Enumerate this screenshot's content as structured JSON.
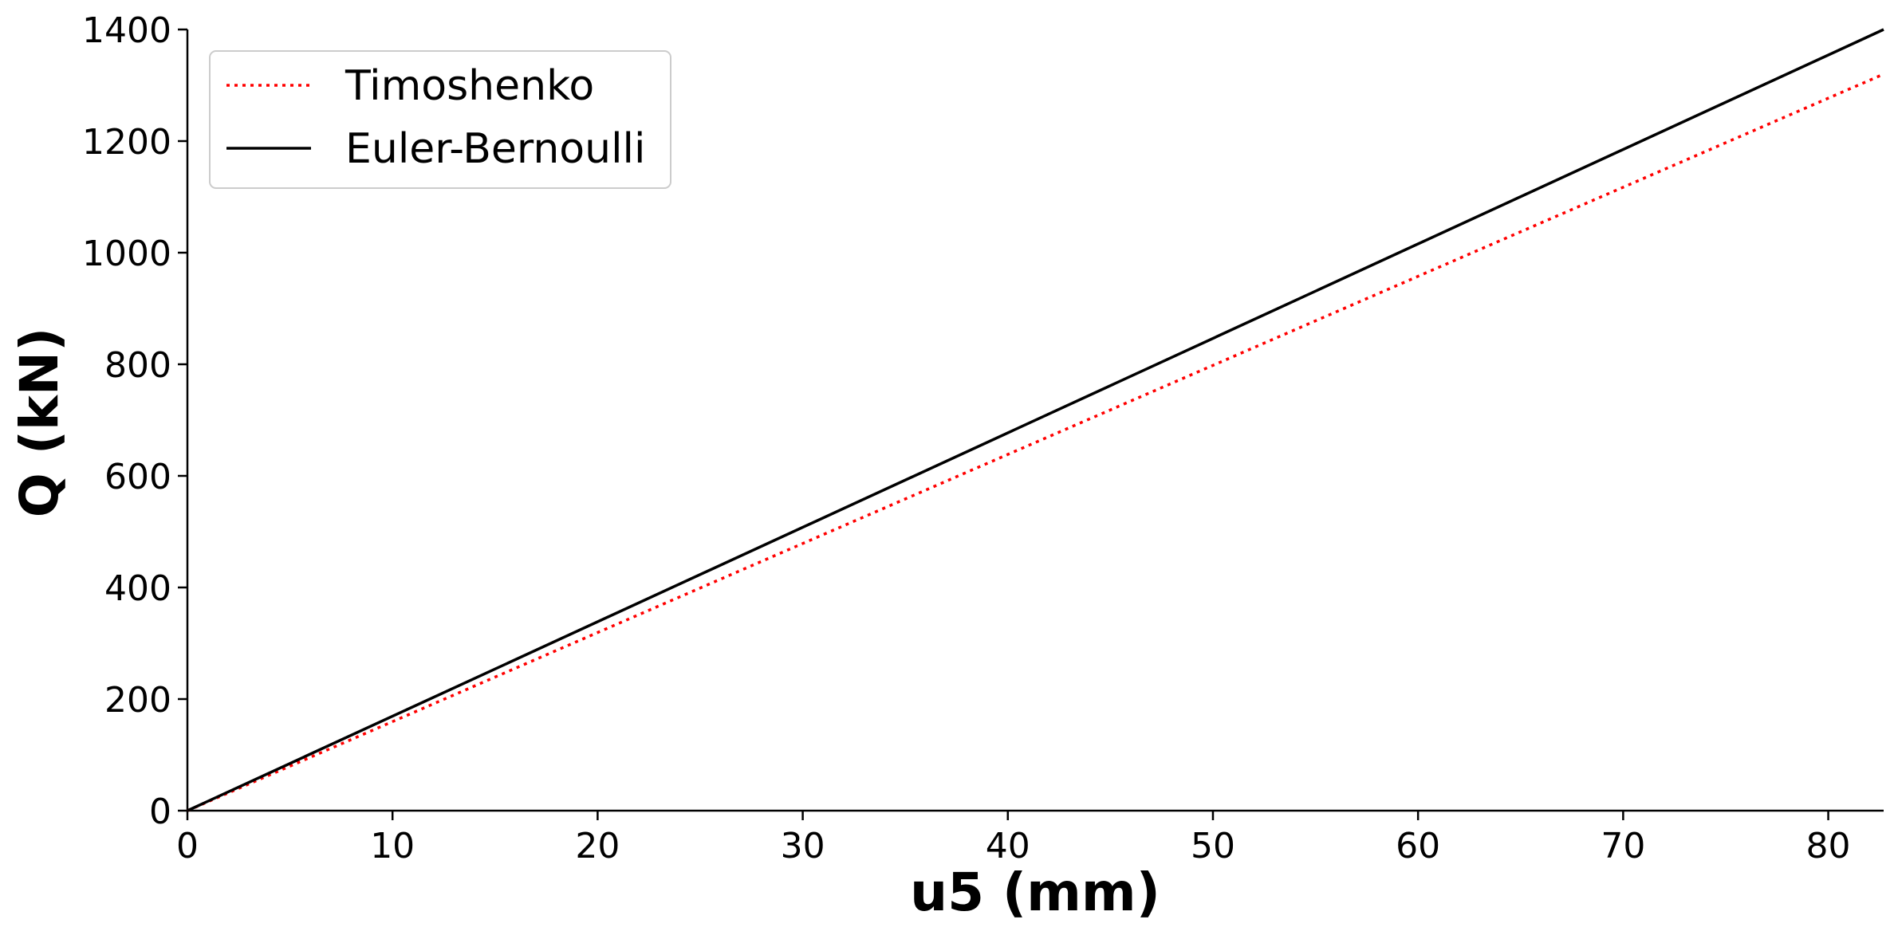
{
  "chart_data": {
    "type": "line",
    "xlabel": "u5 (mm)",
    "ylabel": "Q (kN)",
    "xlim": [
      0,
      82.7
    ],
    "ylim": [
      0,
      1400
    ],
    "xticks": [
      0,
      10,
      20,
      30,
      40,
      50,
      60,
      70,
      80
    ],
    "yticks": [
      0,
      200,
      400,
      600,
      800,
      1000,
      1200,
      1400
    ],
    "grid": false,
    "legend_position": "top-left",
    "series": [
      {
        "name": "Timoshenko",
        "color": "#ff0000",
        "style": "dotted",
        "x": [
          0,
          82.7
        ],
        "y": [
          0,
          1320
        ]
      },
      {
        "name": "Euler-Bernoulli",
        "color": "#000000",
        "style": "solid",
        "x": [
          0,
          82.7
        ],
        "y": [
          0,
          1400
        ]
      }
    ]
  }
}
